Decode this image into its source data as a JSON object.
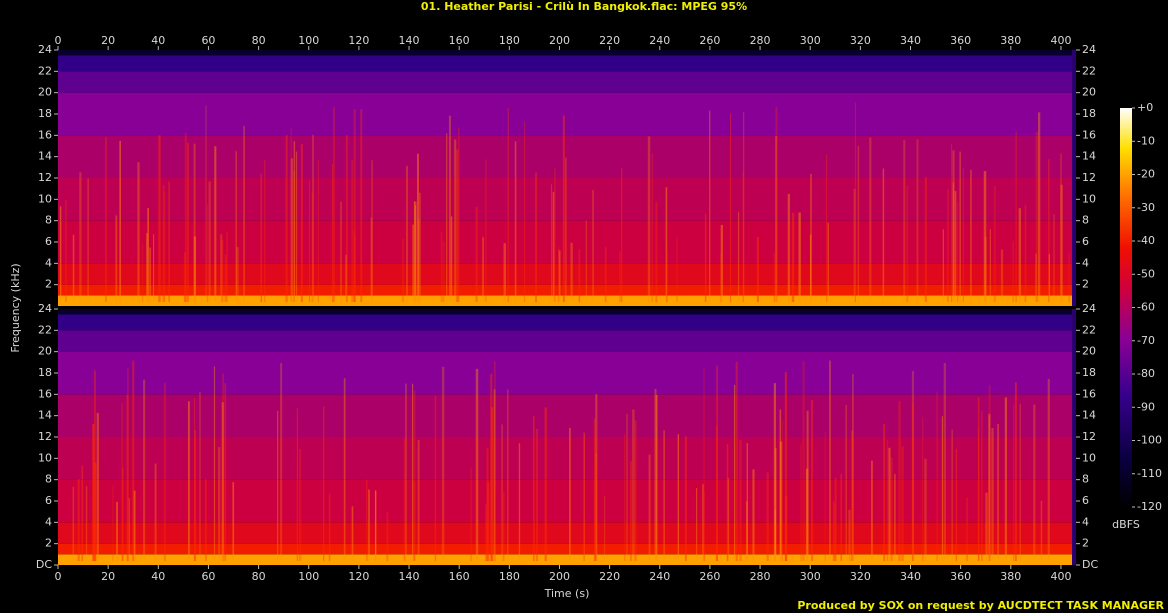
{
  "chart_data": {
    "type": "spectrogram",
    "title": "01. Heather Parisi - Crilù In Bangkok.flac: MPEG 95%",
    "xlabel": "Time (s)",
    "ylabel": "Frequency (kHz)",
    "footer": "Produced by SOX on request by AUCDTECT TASK MANAGER",
    "xlim": [
      0,
      406
    ],
    "xticks": [
      0,
      20,
      40,
      60,
      80,
      100,
      120,
      140,
      160,
      180,
      200,
      220,
      240,
      260,
      280,
      300,
      320,
      340,
      360,
      380,
      400
    ],
    "channels": [
      {
        "ylim": [
          0,
          24
        ],
        "yticks": [
          2,
          4,
          6,
          8,
          10,
          12,
          14,
          16,
          18,
          20,
          22,
          24
        ],
        "band_edges": [
          0,
          1,
          2,
          4,
          8,
          12,
          16,
          20,
          22,
          23.5,
          24
        ],
        "levels": [
          -20,
          -40,
          -48,
          -55,
          -58,
          -62,
          -70,
          -78,
          -88,
          -110
        ]
      },
      {
        "ylim": [
          0,
          24
        ],
        "yticks": [
          {
            "value": 0,
            "label": "DC"
          },
          2,
          4,
          6,
          8,
          10,
          12,
          14,
          16,
          18,
          20,
          22,
          24
        ],
        "band_edges": [
          0,
          1,
          2,
          4,
          8,
          12,
          16,
          20,
          22,
          23.5,
          24
        ],
        "levels": [
          -20,
          -40,
          -48,
          -55,
          -58,
          -62,
          -70,
          -78,
          -88,
          -110
        ]
      }
    ],
    "colorbar": {
      "label": "dBFS",
      "lim": [
        -120,
        0
      ],
      "ticks": [
        {
          "value": 0,
          "label": "+0"
        },
        -10,
        -20,
        -30,
        -40,
        -50,
        -60,
        -70,
        -80,
        -90,
        -100,
        -110,
        -120
      ]
    }
  }
}
